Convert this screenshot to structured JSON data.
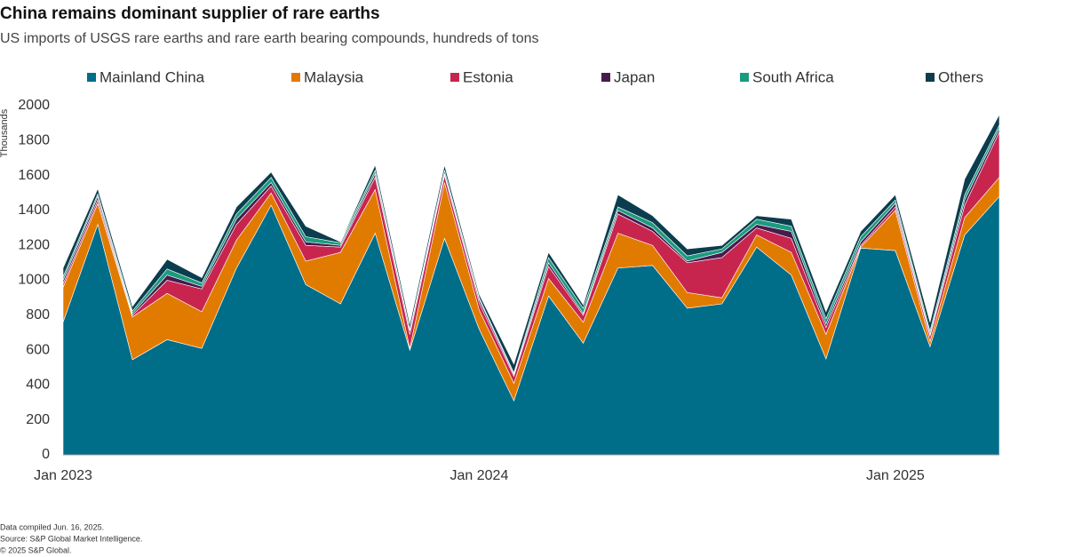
{
  "chart_data": {
    "type": "stacked_area",
    "title": "China remains dominant supplier of rare earths",
    "subtitle": "US imports of USGS rare earths and rare earth bearing compounds, hundreds of tons",
    "y_axis_label": "Thousands",
    "categories": [
      "Jan 2023",
      null,
      null,
      null,
      null,
      null,
      null,
      null,
      null,
      null,
      null,
      null,
      "Jan 2024",
      null,
      null,
      null,
      null,
      null,
      null,
      null,
      null,
      null,
      null,
      null,
      "Jan 2025",
      null,
      null,
      null
    ],
    "series": [
      {
        "name": "Mainland China",
        "color": "#006d89",
        "values": [
          760,
          1320,
          545,
          660,
          610,
          1070,
          1430,
          975,
          865,
          1270,
          600,
          1240,
          720,
          310,
          910,
          640,
          1070,
          1085,
          840,
          865,
          1190,
          1030,
          550,
          1185,
          1170,
          620,
          1260,
          1480
        ]
      },
      {
        "name": "Malaysia",
        "color": "#e07b00",
        "values": [
          200,
          120,
          245,
          265,
          210,
          160,
          70,
          135,
          295,
          250,
          10,
          320,
          110,
          100,
          100,
          120,
          200,
          115,
          90,
          35,
          70,
          130,
          140,
          5,
          230,
          30,
          100,
          110
        ]
      },
      {
        "name": "Estonia",
        "color": "#c8254e",
        "values": [
          20,
          20,
          10,
          75,
          130,
          90,
          40,
          90,
          30,
          70,
          80,
          40,
          40,
          40,
          70,
          40,
          110,
          80,
          170,
          230,
          40,
          80,
          40,
          10,
          20,
          30,
          70,
          260
        ]
      },
      {
        "name": "Japan",
        "color": "#4a1a4e",
        "values": [
          20,
          20,
          10,
          30,
          15,
          30,
          20,
          20,
          10,
          20,
          20,
          10,
          20,
          10,
          20,
          10,
          20,
          20,
          10,
          30,
          20,
          40,
          20,
          20,
          20,
          10,
          30,
          20
        ]
      },
      {
        "name": "South Africa",
        "color": "#1b9b7e",
        "values": [
          20,
          15,
          15,
          35,
          20,
          30,
          30,
          30,
          15,
          20,
          10,
          20,
          10,
          10,
          30,
          30,
          20,
          30,
          30,
          20,
          30,
          30,
          30,
          30,
          20,
          20,
          30,
          20
        ]
      },
      {
        "name": "Others",
        "color": "#0b3d4e",
        "values": [
          50,
          30,
          25,
          55,
          30,
          40,
          30,
          60,
          5,
          30,
          30,
          30,
          20,
          50,
          30,
          20,
          70,
          40,
          40,
          20,
          20,
          40,
          40,
          30,
          30,
          50,
          90,
          60
        ]
      }
    ],
    "ylim": [
      0,
      2000
    ],
    "yticks": [
      0,
      200,
      400,
      600,
      800,
      1000,
      1200,
      1400,
      1600,
      1800,
      2000
    ],
    "grid": false,
    "legend": "top",
    "footnotes": [
      "Data compiled Jun. 16, 2025.",
      "Source: S&P Global Market Intelligence.",
      "© 2025 S&P Global."
    ]
  }
}
